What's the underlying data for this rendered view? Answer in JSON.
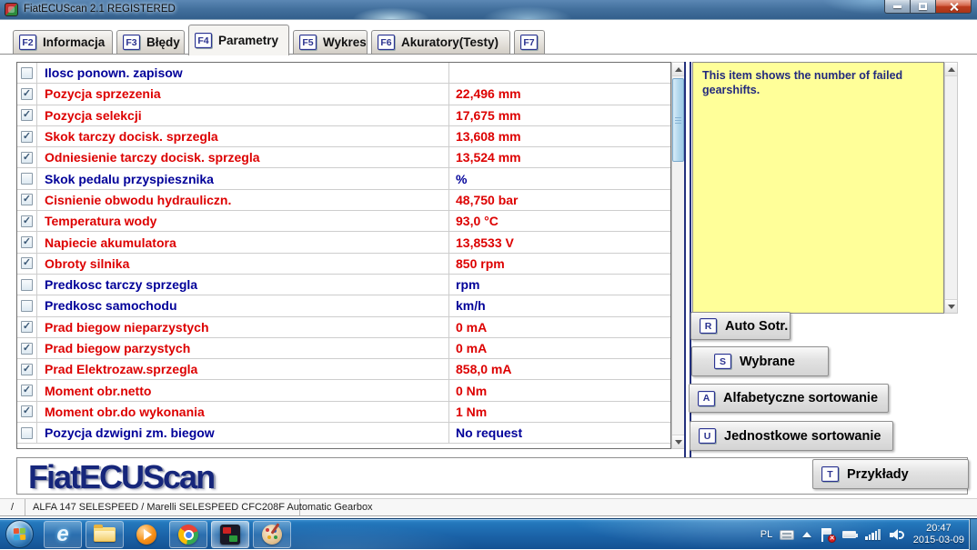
{
  "window": {
    "title": "FiatECUScan 2.1 REGISTERED"
  },
  "tabs": [
    {
      "key": "F2",
      "label": "Informacja",
      "active": false
    },
    {
      "key": "F3",
      "label": "Błędy",
      "active": false
    },
    {
      "key": "F4",
      "label": "Parametry",
      "active": true
    },
    {
      "key": "F5",
      "label": "Wykres",
      "active": false
    },
    {
      "key": "F6",
      "label": "Akuratory(Testy)",
      "active": false
    },
    {
      "key": "F7",
      "label": "",
      "active": false
    }
  ],
  "parameters": {
    "rows": [
      {
        "checked": false,
        "name": "Ilosc ponown. zapisow",
        "value": "",
        "color": "blue"
      },
      {
        "checked": true,
        "name": "Pozycja sprzezenia",
        "value": "22,496 mm",
        "color": "red"
      },
      {
        "checked": true,
        "name": "Pozycja selekcji",
        "value": "17,675 mm",
        "color": "red"
      },
      {
        "checked": true,
        "name": "Skok tarczy docisk. sprzegla",
        "value": "13,608 mm",
        "color": "red"
      },
      {
        "checked": true,
        "name": "Odniesienie tarczy docisk. sprzegla",
        "value": "13,524 mm",
        "color": "red"
      },
      {
        "checked": false,
        "name": "Skok pedalu przyspiesznika",
        "value": "%",
        "color": "blue"
      },
      {
        "checked": true,
        "name": "Cisnienie obwodu hydrauliczn.",
        "value": "48,750 bar",
        "color": "red"
      },
      {
        "checked": true,
        "name": "Temperatura wody",
        "value": "93,0 °C",
        "color": "red"
      },
      {
        "checked": true,
        "name": "Napiecie akumulatora",
        "value": "13,8533 V",
        "color": "red"
      },
      {
        "checked": true,
        "name": "Obroty silnika",
        "value": "850 rpm",
        "color": "red"
      },
      {
        "checked": false,
        "name": "Predkosc tarczy sprzegla",
        "value": "rpm",
        "color": "blue"
      },
      {
        "checked": false,
        "name": "Predkosc samochodu",
        "value": "km/h",
        "color": "blue"
      },
      {
        "checked": true,
        "name": "Prad biegow nieparzystych",
        "value": "0 mA",
        "color": "red"
      },
      {
        "checked": true,
        "name": "Prad biegow parzystych",
        "value": "0 mA",
        "color": "red"
      },
      {
        "checked": true,
        "name": "Prad Elektrozaw.sprzegla",
        "value": "858,0 mA",
        "color": "red"
      },
      {
        "checked": true,
        "name": "Moment obr.netto",
        "value": "0 Nm",
        "color": "red"
      },
      {
        "checked": true,
        "name": "Moment obr.do wykonania",
        "value": "1 Nm",
        "color": "red"
      },
      {
        "checked": false,
        "name": "Pozycja dzwigni zm. biegow",
        "value": "No request",
        "color": "blue"
      }
    ]
  },
  "info_panel": {
    "text": "This item shows the number of failed gearshifts."
  },
  "side_buttons": [
    {
      "key": "R",
      "label": "Auto Sotr."
    },
    {
      "key": "S",
      "label": "Wybrane"
    },
    {
      "key": "A",
      "label": "Alfabetyczne sortowanie"
    },
    {
      "key": "U",
      "label": "Jednostkowe sortowanie"
    }
  ],
  "examples_button": {
    "key": "T",
    "label": "Przykłady"
  },
  "logo": "FiatECUScan",
  "status_bar": {
    "left_cell": "/",
    "vehicle": "ALFA 147 SELESPEED / Marelli SELESPEED CFC208F Automatic Gearbox"
  },
  "taskbar": {
    "pinned_icons": [
      "start-orb",
      "internet-explorer-icon",
      "windows-explorer-icon",
      "media-player-icon",
      "chrome-icon",
      "fiatecuscan-icon",
      "paint-icon"
    ],
    "tray": {
      "language": "PL",
      "tray_icons": [
        "keyboard-icon",
        "show-hidden-icons-chevron",
        "action-center-flag-icon",
        "battery-icon",
        "network-signal-icon",
        "volume-icon"
      ],
      "time": "20:47",
      "date": "2015-03-09"
    }
  },
  "colors": {
    "param_red": "#dd0000",
    "param_blue": "#000099",
    "info_bg": "#ffff99",
    "divider_navy": "#23307d",
    "logo_navy": "#16267b"
  }
}
